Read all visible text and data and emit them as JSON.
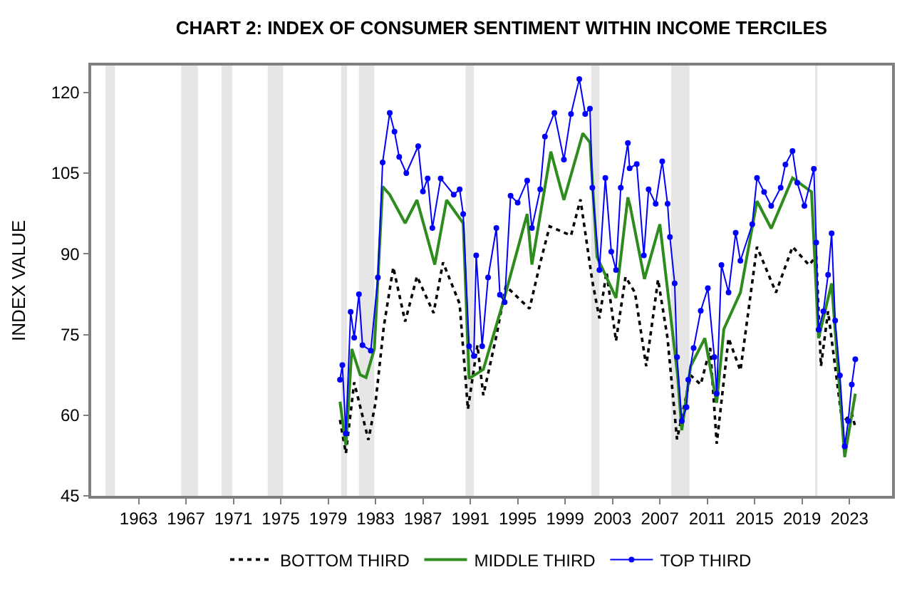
{
  "chart_data": {
    "type": "line",
    "title": "CHART 2: INDEX OF CONSUMER SENTIMENT WITHIN INCOME TERCILES",
    "ylabel": "INDEX VALUE",
    "xlim": [
      1959.0,
      2026.6
    ],
    "xticks": [
      1963,
      1967,
      1971,
      1975,
      1979,
      1983,
      1987,
      1991,
      1995,
      1999,
      2003,
      2007,
      2011,
      2015,
      2019,
      2023
    ],
    "ylim": [
      45,
      125
    ],
    "yticks": [
      45,
      60,
      75,
      90,
      105,
      120
    ],
    "grid": false,
    "legend": "bottom",
    "bands": [
      {
        "axis": "x",
        "from": 1960.2,
        "to": 1961.0,
        "color": "#e6e6e6"
      },
      {
        "axis": "x",
        "from": 1966.6,
        "to": 1968.0,
        "color": "#e6e6e6"
      },
      {
        "axis": "x",
        "from": 1970.0,
        "to": 1970.9,
        "color": "#e6e6e6"
      },
      {
        "axis": "x",
        "from": 1973.9,
        "to": 1975.2,
        "color": "#e6e6e6"
      },
      {
        "axis": "x",
        "from": 1980.1,
        "to": 1980.6,
        "color": "#e6e6e6"
      },
      {
        "axis": "x",
        "from": 1981.6,
        "to": 1982.9,
        "color": "#e6e6e6"
      },
      {
        "axis": "x",
        "from": 1990.6,
        "to": 1991.3,
        "color": "#e6e6e6"
      },
      {
        "axis": "x",
        "from": 2001.2,
        "to": 2001.9,
        "color": "#e6e6e6"
      },
      {
        "axis": "x",
        "from": 2007.95,
        "to": 2009.5,
        "color": "#e6e6e6"
      },
      {
        "axis": "x",
        "from": 2020.1,
        "to": 2020.3,
        "color": "#e6e6e6"
      }
    ],
    "series": [
      {
        "name": "BOTTOM THIRD",
        "color": "#000000",
        "line_style": "dotted",
        "marker": "none",
        "x": [
          1980.0,
          1980.5,
          1981.2,
          1982.4,
          1983.0,
          1983.7,
          1984.5,
          1985.5,
          1986.5,
          1987.9,
          1988.7,
          1990.1,
          1990.8,
          1991.6,
          1992.1,
          1993.2,
          1994.0,
          1996.0,
          1996.9,
          1997.7,
          1999.5,
          2000.3,
          2001.3,
          2001.9,
          2002.5,
          2003.3,
          2004.1,
          2004.9,
          2005.85,
          2006.85,
          2007.65,
          2008.45,
          2009.6,
          2010.45,
          2011.25,
          2011.8,
          2012.8,
          2013.8,
          2015.2,
          2016.8,
          2018.2,
          2019.6,
          2020.2,
          2020.6,
          2021.2,
          2022.4,
          2023.2,
          2023.5
        ],
        "values": [
          59.1,
          52.9,
          66.1,
          55.4,
          62.3,
          76.5,
          87.5,
          77.4,
          85.8,
          79,
          88.4,
          80.7,
          61.1,
          73,
          63.7,
          74.7,
          84,
          79.8,
          88.3,
          95.1,
          93.4,
          100.1,
          84.9,
          78,
          86.6,
          73.8,
          85.7,
          82.8,
          69.1,
          85.2,
          74.3,
          55.5,
          67.4,
          65.7,
          72.5,
          54.7,
          74.3,
          68.3,
          91.3,
          82.8,
          91.3,
          87.9,
          89.6,
          69.1,
          79.3,
          58.6,
          60.3,
          57.8
        ]
      },
      {
        "name": "MIDDLE THIRD",
        "color": "#2e8b1e",
        "line_style": "solid",
        "marker": "none",
        "x": [
          1980.0,
          1980.5,
          1981.0,
          1981.7,
          1982.2,
          1982.9,
          1983.6,
          1984.2,
          1985.5,
          1986.5,
          1988.0,
          1989.0,
          1990.4,
          1990.9,
          1992.1,
          1993.8,
          1995.8,
          1996.2,
          1997.8,
          1998.9,
          2000.5,
          2001.1,
          2001.7,
          2003.3,
          2004.3,
          2004.5,
          2005.7,
          2007.0,
          2008.5,
          2008.85,
          2009.6,
          2010.8,
          2011.8,
          2012.4,
          2013.8,
          2015.2,
          2016.4,
          2018.2,
          2019.8,
          2020.4,
          2021.5,
          2022.6,
          2023.5
        ],
        "values": [
          62.5,
          54.4,
          72.3,
          67.5,
          67,
          72.3,
          102.5,
          101,
          95.7,
          100,
          88,
          100,
          95.7,
          66.8,
          68.5,
          81.2,
          97.4,
          88,
          109,
          100,
          112.4,
          110.7,
          89.4,
          81.8,
          100.5,
          98.8,
          85.3,
          95.5,
          67.4,
          57.2,
          69.1,
          74.3,
          62.3,
          76,
          82.8,
          99.8,
          94.7,
          104.1,
          101.5,
          74.3,
          84.5,
          52.2,
          64
        ]
      },
      {
        "name": "TOP THIRD",
        "color": "#0000ff",
        "line_style": "solid",
        "marker": "circle",
        "x": [
          1980.0,
          1980.2,
          1980.5,
          1980.9,
          1981.2,
          1981.6,
          1981.9,
          1982.6,
          1983.2,
          1983.6,
          1984.2,
          1984.6,
          1985.0,
          1985.6,
          1986.6,
          1987.0,
          1987.4,
          1987.8,
          1988.5,
          1989.6,
          1990.1,
          1990.4,
          1990.9,
          1991.3,
          1991.5,
          1992.0,
          1992.5,
          1993.2,
          1993.5,
          1993.9,
          1994.4,
          1995.0,
          1995.8,
          1996.2,
          1996.9,
          1997.3,
          1998.1,
          1998.9,
          1999.5,
          2000.2,
          2000.7,
          2001.1,
          2001.3,
          2001.9,
          2002.4,
          2002.9,
          2003.3,
          2003.7,
          2004.3,
          2004.45,
          2005.05,
          2005.65,
          2006.05,
          2006.65,
          2007.2,
          2007.65,
          2007.85,
          2008.25,
          2008.45,
          2008.85,
          2009.25,
          2009.4,
          2009.85,
          2010.45,
          2011.05,
          2011.6,
          2011.8,
          2012.2,
          2012.8,
          2013.4,
          2013.8,
          2014.8,
          2015.2,
          2015.8,
          2016.4,
          2017.2,
          2017.6,
          2018.2,
          2018.6,
          2019.2,
          2020.0,
          2020.2,
          2020.4,
          2020.8,
          2021.2,
          2021.5,
          2021.8,
          2022.2,
          2022.6,
          2022.9,
          2023.2,
          2023.5
        ],
        "values": [
          66.6,
          69.3,
          56.6,
          79.2,
          74.4,
          82.5,
          73,
          72,
          85.6,
          107,
          116.2,
          112.7,
          108,
          105,
          110,
          101.6,
          104,
          94.8,
          104,
          101,
          102,
          97.4,
          72.8,
          71,
          89.7,
          72.8,
          85.6,
          94.8,
          82.4,
          81,
          100.8,
          99.5,
          103.6,
          94.8,
          102,
          111.8,
          116.2,
          107.5,
          116,
          122.5,
          116,
          117,
          102.3,
          87,
          104.1,
          90.4,
          87,
          102.3,
          110.6,
          105.9,
          106.7,
          89.7,
          102,
          99.3,
          107.2,
          99.3,
          93.1,
          84.5,
          70.8,
          58.9,
          61.5,
          66.6,
          72.5,
          79.4,
          83.6,
          70.8,
          64,
          87.9,
          82.8,
          93.9,
          88.7,
          95.5,
          104.1,
          101.5,
          98.9,
          102.3,
          106.6,
          109.1,
          103.2,
          98.9,
          105.8,
          92.1,
          75.9,
          79.3,
          86.1,
          93.8,
          77.6,
          67.4,
          54.2,
          58.9,
          65.7,
          70.4
        ]
      }
    ]
  }
}
